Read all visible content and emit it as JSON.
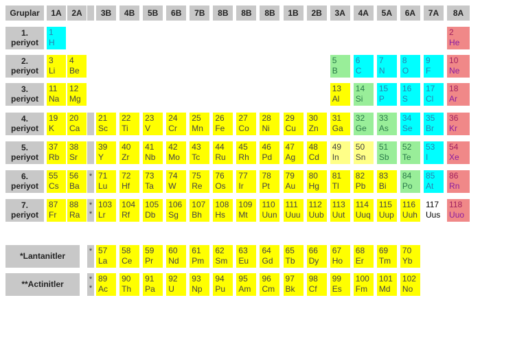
{
  "headers": {
    "label": "Gruplar",
    "groups": [
      "1A",
      "2A",
      "",
      "3B",
      "4B",
      "5B",
      "6B",
      "7B",
      "8B",
      "8B",
      "8B",
      "1B",
      "2B",
      "3A",
      "4A",
      "5A",
      "6A",
      "7A",
      "8A"
    ]
  },
  "colors": {
    "yellow": "#ffff00",
    "pale_yellow": "#ffff88",
    "cyan": "#00ffff",
    "green": "#99ee99",
    "pink": "#f08888",
    "gray": "#c8c8c8"
  },
  "periods": [
    {
      "num": "1.",
      "label": "periyot",
      "gap": null,
      "elements": [
        [
          "1",
          "H",
          "cy",
          0
        ],
        [
          "2",
          "He",
          "p",
          18
        ]
      ]
    },
    {
      "num": "2.",
      "label": "periyot",
      "gap": null,
      "elements": [
        [
          "3",
          "Li",
          "y",
          0
        ],
        [
          "4",
          "Be",
          "y",
          1
        ],
        [
          "5",
          "B",
          "g",
          13
        ],
        [
          "6",
          "C",
          "cy",
          14
        ],
        [
          "7",
          "N",
          "cy",
          15
        ],
        [
          "8",
          "O",
          "cy",
          16
        ],
        [
          "9",
          "F",
          "cy",
          17
        ],
        [
          "10",
          "Ne",
          "p",
          18
        ]
      ]
    },
    {
      "num": "3.",
      "label": "periyot",
      "gap": null,
      "elements": [
        [
          "11",
          "Na",
          "y",
          0
        ],
        [
          "12",
          "Mg",
          "y",
          1
        ],
        [
          "13",
          "Al",
          "y",
          13
        ],
        [
          "14",
          "Si",
          "g",
          14
        ],
        [
          "15",
          "P",
          "cy",
          15
        ],
        [
          "16",
          "S",
          "cy",
          16
        ],
        [
          "17",
          "Cl",
          "cy",
          17
        ],
        [
          "18",
          "Ar",
          "p",
          18
        ]
      ]
    },
    {
      "num": "4.",
      "label": "periyot",
      "gap": "",
      "elements": [
        [
          "19",
          "K",
          "y",
          0
        ],
        [
          "20",
          "Ca",
          "y",
          1
        ],
        [
          "21",
          "Sc",
          "y",
          3
        ],
        [
          "22",
          "Ti",
          "y",
          4
        ],
        [
          "23",
          "V",
          "y",
          5
        ],
        [
          "24",
          "Cr",
          "y",
          6
        ],
        [
          "25",
          "Mn",
          "y",
          7
        ],
        [
          "26",
          "Fe",
          "y",
          8
        ],
        [
          "27",
          "Co",
          "y",
          9
        ],
        [
          "28",
          "Ni",
          "y",
          10
        ],
        [
          "29",
          "Cu",
          "y",
          11
        ],
        [
          "30",
          "Zn",
          "y",
          12
        ],
        [
          "31",
          "Ga",
          "y",
          13
        ],
        [
          "32",
          "Ge",
          "g",
          14
        ],
        [
          "33",
          "As",
          "g",
          15
        ],
        [
          "34",
          "Se",
          "cy",
          16
        ],
        [
          "35",
          "Br",
          "cy",
          17
        ],
        [
          "36",
          "Kr",
          "p",
          18
        ]
      ]
    },
    {
      "num": "5.",
      "label": "periyot",
      "gap": "",
      "elements": [
        [
          "37",
          "Rb",
          "y",
          0
        ],
        [
          "38",
          "Sr",
          "y",
          1
        ],
        [
          "39",
          "Y",
          "y",
          3
        ],
        [
          "40",
          "Zr",
          "y",
          4
        ],
        [
          "41",
          "Nb",
          "y",
          5
        ],
        [
          "42",
          "Mo",
          "y",
          6
        ],
        [
          "43",
          "Tc",
          "y",
          7
        ],
        [
          "44",
          "Ru",
          "y",
          8
        ],
        [
          "45",
          "Rh",
          "y",
          9
        ],
        [
          "46",
          "Pd",
          "y",
          10
        ],
        [
          "47",
          "Ag",
          "y",
          11
        ],
        [
          "48",
          "Cd",
          "y",
          12
        ],
        [
          "49",
          "In",
          "py",
          13
        ],
        [
          "50",
          "Sn",
          "py",
          14
        ],
        [
          "51",
          "Sb",
          "g",
          15
        ],
        [
          "52",
          "Te",
          "g",
          16
        ],
        [
          "53",
          "I",
          "cy",
          17
        ],
        [
          "54",
          "Xe",
          "p",
          18
        ]
      ]
    },
    {
      "num": "6.",
      "label": "periyot",
      "gap": "*",
      "elements": [
        [
          "55",
          "Cs",
          "y",
          0
        ],
        [
          "56",
          "Ba",
          "y",
          1
        ],
        [
          "71",
          "Lu",
          "y",
          3
        ],
        [
          "72",
          "Hf",
          "y",
          4
        ],
        [
          "73",
          "Ta",
          "y",
          5
        ],
        [
          "74",
          "W",
          "y",
          6
        ],
        [
          "75",
          "Re",
          "y",
          7
        ],
        [
          "76",
          "Os",
          "y",
          8
        ],
        [
          "77",
          "Ir",
          "y",
          9
        ],
        [
          "78",
          "Pt",
          "y",
          10
        ],
        [
          "79",
          "Au",
          "y",
          11
        ],
        [
          "80",
          "Hg",
          "y",
          12
        ],
        [
          "81",
          "Tl",
          "y",
          13
        ],
        [
          "82",
          "Pb",
          "y",
          14
        ],
        [
          "83",
          "Bi",
          "y",
          15
        ],
        [
          "84",
          "Po",
          "g",
          16
        ],
        [
          "85",
          "At",
          "cy",
          17
        ],
        [
          "86",
          "Rn",
          "p",
          18
        ]
      ]
    },
    {
      "num": "7.",
      "label": "periyot",
      "gap": "**",
      "elements": [
        [
          "87",
          "Fr",
          "y",
          0
        ],
        [
          "88",
          "Ra",
          "y",
          1
        ],
        [
          "103",
          "Lr",
          "y",
          3
        ],
        [
          "104",
          "Rf",
          "y",
          4
        ],
        [
          "105",
          "Db",
          "y",
          5
        ],
        [
          "106",
          "Sg",
          "y",
          6
        ],
        [
          "107",
          "Bh",
          "y",
          7
        ],
        [
          "108",
          "Hs",
          "y",
          8
        ],
        [
          "109",
          "Mt",
          "y",
          9
        ],
        [
          "110",
          "Uun",
          "y",
          10
        ],
        [
          "111",
          "Uuu",
          "y",
          11
        ],
        [
          "112",
          "Uub",
          "y",
          12
        ],
        [
          "113",
          "Uut",
          "y",
          13
        ],
        [
          "114",
          "Uuq",
          "y",
          14
        ],
        [
          "115",
          "Uup",
          "y",
          15
        ],
        [
          "116",
          "Uuh",
          "y",
          16
        ],
        [
          "117",
          "Uus",
          "w",
          17
        ],
        [
          "118",
          "Uuo",
          "p",
          18
        ]
      ]
    }
  ],
  "series": [
    {
      "label": "*Lantanitler",
      "gap": "*",
      "elements": [
        [
          "57",
          "La"
        ],
        [
          "58",
          "Ce"
        ],
        [
          "59",
          "Pr"
        ],
        [
          "60",
          "Nd"
        ],
        [
          "61",
          "Pm"
        ],
        [
          "62",
          "Sm"
        ],
        [
          "63",
          "Eu"
        ],
        [
          "64",
          "Gd"
        ],
        [
          "65",
          "Tb"
        ],
        [
          "66",
          "Dy"
        ],
        [
          "67",
          "Ho"
        ],
        [
          "68",
          "Er"
        ],
        [
          "69",
          "Tm"
        ],
        [
          "70",
          "Yb"
        ]
      ]
    },
    {
      "label": "**Actinitler",
      "gap": "**",
      "elements": [
        [
          "89",
          "Ac"
        ],
        [
          "90",
          "Th"
        ],
        [
          "91",
          "Pa"
        ],
        [
          "92",
          "U"
        ],
        [
          "93",
          "Np"
        ],
        [
          "94",
          "Pu"
        ],
        [
          "95",
          "Am"
        ],
        [
          "96",
          "Cm"
        ],
        [
          "97",
          "Bk"
        ],
        [
          "98",
          "Cf"
        ],
        [
          "99",
          "Es"
        ],
        [
          "100",
          "Fm"
        ],
        [
          "101",
          "Md"
        ],
        [
          "102",
          "No"
        ]
      ]
    }
  ]
}
